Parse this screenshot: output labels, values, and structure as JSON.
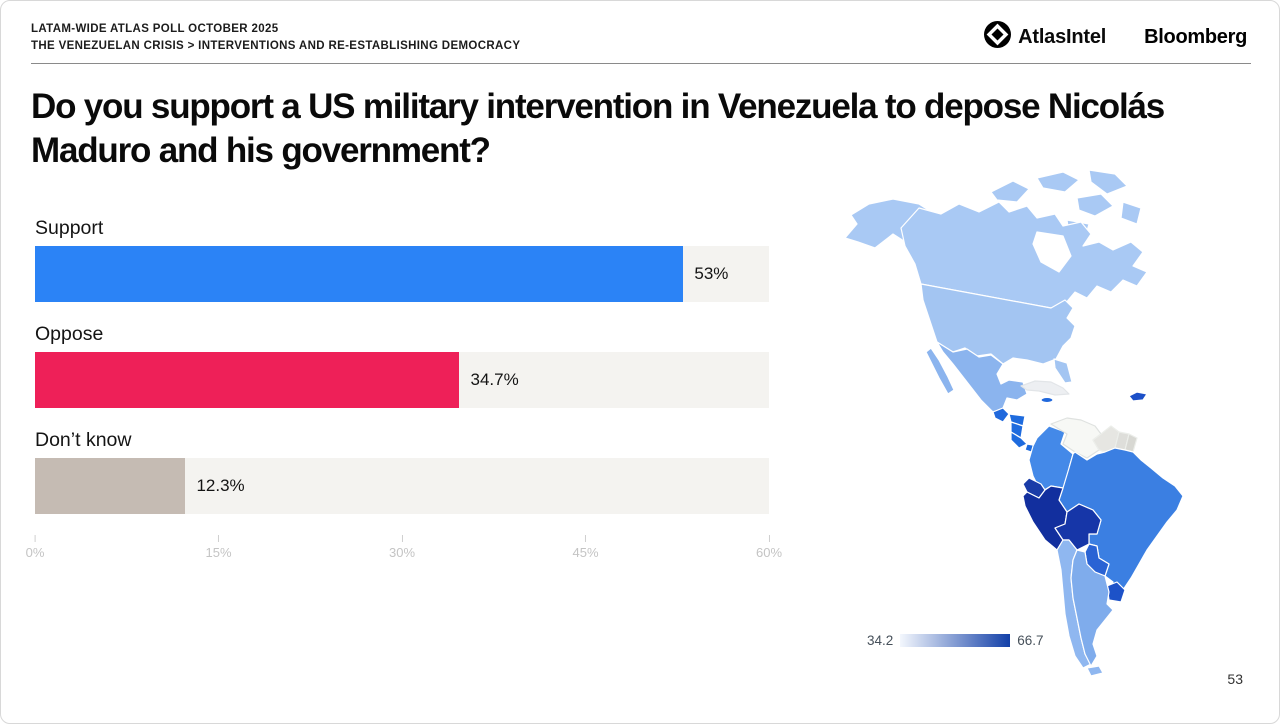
{
  "header": {
    "kicker_line1": "LATAM-WIDE ATLAS POLL OCTOBER 2025",
    "kicker_line2": "THE VENEZUELAN CRISIS > INTERVENTIONS AND RE-ESTABLISHING DEMOCRACY",
    "brand_atlasintel": "AtlasIntel",
    "brand_bloomberg": "Bloomberg"
  },
  "title": "Do you support a US military intervention in Venezuela to depose Nicolás Maduro and his government?",
  "chart_data": {
    "type": "bar",
    "orientation": "horizontal",
    "categories": [
      "Support",
      "Oppose",
      "Don’t know"
    ],
    "values": [
      53,
      34.7,
      12.3
    ],
    "value_labels": [
      "53%",
      "34.7%",
      "12.3%"
    ],
    "bar_colors": [
      "#2B83F6",
      "#EE2058",
      "#C5BBB3"
    ],
    "track_color": "#F4F3F0",
    "xlim": [
      0,
      60
    ],
    "x_ticks": [
      "0%",
      "15%",
      "30%",
      "45%",
      "60%"
    ],
    "grid": false,
    "legend_position": "none"
  },
  "map": {
    "description": "choropleth-of-the-americas",
    "legend": {
      "min_label": "34.2",
      "max_label": "66.7",
      "gradient_from": "#F3F7FD",
      "gradient_to": "#1340A8"
    },
    "region_fills": {
      "alaska": "#A9C9F4",
      "arctic_islands": "#A9C9F4",
      "canada": "#A9C9F4",
      "hudson_bay": "#FFFFFF",
      "usa": "#A3C5F2",
      "florida": "#A3C5F2",
      "baja": "#8BB4EE",
      "mexico": "#8BB4EE",
      "guatemala": "#2068DC",
      "honduras": "#1E6BDE",
      "nicaragua": "#1E6BDE",
      "costa_rica": "#1E6BDE",
      "panama": "#1E6BDE",
      "cuba": "#EDEFF2",
      "jamaica": "#2068DC",
      "hispaniola": "#1C50C8",
      "colombia": "#4489E8",
      "venezuela": "#F7F8F5",
      "guyana": "#E6E6E2",
      "suriname": "#DEDEDA",
      "french_guiana": "#D8D8D3",
      "ecuador": "#1A3CA8",
      "peru": "#122F9E",
      "bolivia": "#1636A8",
      "brazil": "#3B7FE2",
      "paraguay": "#2A63D4",
      "uruguay": "#1D52C8",
      "chile": "#8FB7F0",
      "argentina": "#7FACEC",
      "tierra_del_fuego": "#8FB7F0"
    }
  },
  "page_number": "53"
}
